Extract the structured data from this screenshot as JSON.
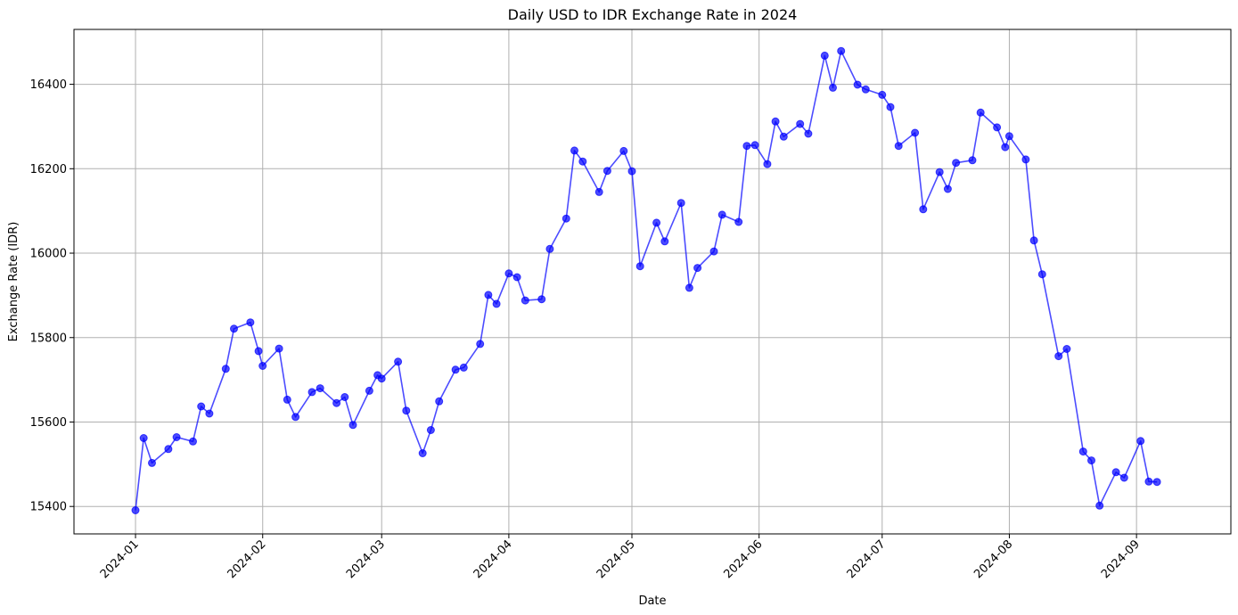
{
  "chart_data": {
    "type": "line",
    "title": "Daily USD to IDR Exchange Rate in 2024",
    "xlabel": "Date",
    "ylabel": "Exchange Rate (IDR)",
    "grid": true,
    "ylim": [
      15335,
      16530
    ],
    "xlim": [
      "2023-12-17",
      "2024-09-24"
    ],
    "x_ticks": [
      "2024-01",
      "2024-02",
      "2024-03",
      "2024-04",
      "2024-05",
      "2024-06",
      "2024-07",
      "2024-08",
      "2024-09"
    ],
    "y_ticks": [
      15400,
      15600,
      15800,
      16000,
      16200,
      16400
    ],
    "colors": {
      "line": "#0000ff",
      "grid": "#b0b0b0"
    },
    "series": [
      {
        "marker": "circle",
        "points": [
          [
            "2024-01-01",
            15391
          ],
          [
            "2024-01-03",
            15562
          ],
          [
            "2024-01-05",
            15503
          ],
          [
            "2024-01-09",
            15536
          ],
          [
            "2024-01-11",
            15564
          ],
          [
            "2024-01-15",
            15554
          ],
          [
            "2024-01-17",
            15637
          ],
          [
            "2024-01-19",
            15620
          ],
          [
            "2024-01-23",
            15726
          ],
          [
            "2024-01-25",
            15821
          ],
          [
            "2024-01-29",
            15836
          ],
          [
            "2024-01-31",
            15768
          ],
          [
            "2024-02-01",
            15733
          ],
          [
            "2024-02-05",
            15774
          ],
          [
            "2024-02-07",
            15653
          ],
          [
            "2024-02-09",
            15612
          ],
          [
            "2024-02-13",
            15671
          ],
          [
            "2024-02-15",
            15680
          ],
          [
            "2024-02-19",
            15645
          ],
          [
            "2024-02-21",
            15659
          ],
          [
            "2024-02-23",
            15593
          ],
          [
            "2024-02-27",
            15674
          ],
          [
            "2024-02-29",
            15711
          ],
          [
            "2024-03-01",
            15703
          ],
          [
            "2024-03-05",
            15743
          ],
          [
            "2024-03-07",
            15627
          ],
          [
            "2024-03-11",
            15526
          ],
          [
            "2024-03-13",
            15581
          ],
          [
            "2024-03-15",
            15649
          ],
          [
            "2024-03-19",
            15724
          ],
          [
            "2024-03-21",
            15729
          ],
          [
            "2024-03-25",
            15785
          ],
          [
            "2024-03-27",
            15901
          ],
          [
            "2024-03-29",
            15880
          ],
          [
            "2024-04-01",
            15952
          ],
          [
            "2024-04-03",
            15943
          ],
          [
            "2024-04-05",
            15888
          ],
          [
            "2024-04-09",
            15891
          ],
          [
            "2024-04-11",
            16010
          ],
          [
            "2024-04-15",
            16082
          ],
          [
            "2024-04-17",
            16243
          ],
          [
            "2024-04-19",
            16217
          ],
          [
            "2024-04-23",
            16145
          ],
          [
            "2024-04-25",
            16195
          ],
          [
            "2024-04-29",
            16242
          ],
          [
            "2024-05-01",
            16194
          ],
          [
            "2024-05-03",
            15969
          ],
          [
            "2024-05-07",
            16072
          ],
          [
            "2024-05-09",
            16028
          ],
          [
            "2024-05-13",
            16119
          ],
          [
            "2024-05-15",
            15918
          ],
          [
            "2024-05-17",
            15965
          ],
          [
            "2024-05-21",
            16004
          ],
          [
            "2024-05-23",
            16091
          ],
          [
            "2024-05-27",
            16074
          ],
          [
            "2024-05-29",
            16254
          ],
          [
            "2024-05-31",
            16256
          ],
          [
            "2024-06-03",
            16211
          ],
          [
            "2024-06-05",
            16312
          ],
          [
            "2024-06-07",
            16276
          ],
          [
            "2024-06-11",
            16306
          ],
          [
            "2024-06-13",
            16283
          ],
          [
            "2024-06-17",
            16468
          ],
          [
            "2024-06-19",
            16392
          ],
          [
            "2024-06-21",
            16479
          ],
          [
            "2024-06-25",
            16399
          ],
          [
            "2024-06-27",
            16388
          ],
          [
            "2024-07-01",
            16375
          ],
          [
            "2024-07-03",
            16346
          ],
          [
            "2024-07-05",
            16254
          ],
          [
            "2024-07-09",
            16285
          ],
          [
            "2024-07-11",
            16104
          ],
          [
            "2024-07-15",
            16192
          ],
          [
            "2024-07-17",
            16152
          ],
          [
            "2024-07-19",
            16214
          ],
          [
            "2024-07-23",
            16220
          ],
          [
            "2024-07-25",
            16333
          ],
          [
            "2024-07-29",
            16298
          ],
          [
            "2024-07-31",
            16251
          ],
          [
            "2024-08-01",
            16277
          ],
          [
            "2024-08-05",
            16222
          ],
          [
            "2024-08-07",
            16030
          ],
          [
            "2024-08-09",
            15950
          ],
          [
            "2024-08-13",
            15756
          ],
          [
            "2024-08-15",
            15773
          ],
          [
            "2024-08-19",
            15530
          ],
          [
            "2024-08-21",
            15509
          ],
          [
            "2024-08-23",
            15402
          ],
          [
            "2024-08-27",
            15481
          ],
          [
            "2024-08-29",
            15468
          ],
          [
            "2024-09-02",
            15555
          ],
          [
            "2024-09-04",
            15459
          ],
          [
            "2024-09-06",
            15458
          ]
        ]
      }
    ]
  }
}
